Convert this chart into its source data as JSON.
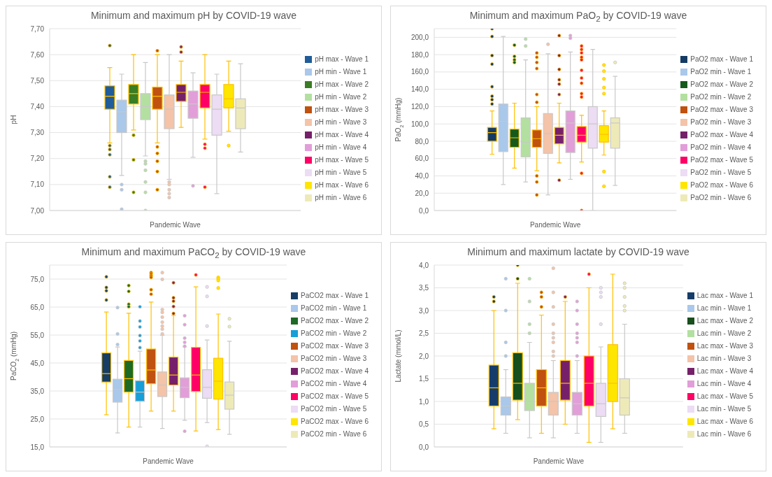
{
  "chart_data": [
    {
      "type": "box",
      "title": "Minimum and maximum pH by COVID-19 wave",
      "xlabel": "Pandemic Wave",
      "ylabel": "pH",
      "categories": [
        null
      ],
      "ylim": [
        7.0,
        7.7
      ],
      "yticks": [
        {
          "value": 7.0,
          "label": "7,00"
        },
        {
          "value": 7.1,
          "label": "7,10"
        },
        {
          "value": 7.2,
          "label": "7,20"
        },
        {
          "value": 7.3,
          "label": "7,30"
        },
        {
          "value": 7.4,
          "label": "7,40"
        },
        {
          "value": 7.5,
          "label": "7,50"
        },
        {
          "value": 7.6,
          "label": "7,60"
        },
        {
          "value": 7.7,
          "label": "7,70"
        }
      ],
      "grid": "y",
      "legend": "right",
      "tick_labels": "y",
      "series": [
        {
          "name": "pH max - Wave 1",
          "color": "#1f5c99",
          "boxes": [
            {
              "low": 7.26,
              "q1": 7.39,
              "median": 7.44,
              "q3": 7.48,
              "high": 7.55,
              "outliers": [
                7.635,
                7.25,
                7.235,
                7.215,
                7.13,
                7.09
              ]
            }
          ]
        },
        {
          "name": "pH min - Wave 1",
          "color": "#a9c8ea",
          "boxes": [
            {
              "low": 7.135,
              "q1": 7.3,
              "median": 7.38,
              "q3": 7.425,
              "high": 7.525,
              "outliers": [
                7.1,
                7.08,
                7.005
              ]
            }
          ]
        },
        {
          "name": "pH max - Wave 2",
          "color": "#3a7d22",
          "boxes": [
            {
              "low": 7.31,
              "q1": 7.41,
              "median": 7.45,
              "q3": 7.485,
              "high": 7.6,
              "outliers": [
                7.29,
                7.195,
                7.07
              ]
            }
          ]
        },
        {
          "name": "pH min - Wave 2",
          "color": "#b3e0a0",
          "boxes": [
            {
              "low": 7.21,
              "q1": 7.35,
              "median": 7.4,
              "q3": 7.45,
              "high": 7.57,
              "outliers": [
                7.19,
                7.18,
                7.155,
                7.11,
                7.07,
                7.0
              ]
            }
          ]
        },
        {
          "name": "pH max - Wave 3",
          "color": "#c0510f",
          "boxes": [
            {
              "low": 7.26,
              "q1": 7.39,
              "median": 7.44,
              "q3": 7.475,
              "high": 7.6,
              "outliers": [
                7.615,
                7.245,
                7.22,
                7.19,
                7.15,
                7.08
              ]
            }
          ]
        },
        {
          "name": "pH min - Wave 3",
          "color": "#f4c3a8",
          "boxes": [
            {
              "low": 7.12,
              "q1": 7.315,
              "median": 7.39,
              "q3": 7.445,
              "high": 7.6,
              "outliers": [
                7.11,
                7.1,
                7.08,
                7.065,
                7.05
              ]
            }
          ]
        },
        {
          "name": "pH max - Wave 4",
          "color": "#77206a",
          "boxes": [
            {
              "low": 7.32,
              "q1": 7.42,
              "median": 7.455,
              "q3": 7.485,
              "high": 7.575,
              "outliers": [
                7.63,
                7.61
              ]
            }
          ]
        },
        {
          "name": "pH min - Wave 4",
          "color": "#e29ed8",
          "boxes": [
            {
              "low": 7.205,
              "q1": 7.355,
              "median": 7.41,
              "q3": 7.46,
              "high": 7.53,
              "outliers": [
                7.095
              ]
            }
          ]
        },
        {
          "name": "pH max - Wave 5",
          "color": "#ff0066",
          "boxes": [
            {
              "low": 7.275,
              "q1": 7.395,
              "median": 7.455,
              "q3": 7.485,
              "high": 7.6,
              "outliers": [
                7.255,
                7.24,
                7.09
              ]
            }
          ]
        },
        {
          "name": "pH min - Wave 5",
          "color": "#ecdcf4",
          "boxes": [
            {
              "low": 7.065,
              "q1": 7.29,
              "median": 7.39,
              "q3": 7.445,
              "high": 7.525
            }
          ]
        },
        {
          "name": "pH max - Wave 6",
          "color": "#ffe600",
          "boxes": [
            {
              "low": 7.305,
              "q1": 7.395,
              "median": 7.43,
              "q3": 7.485,
              "high": 7.575,
              "outliers": [
                7.25
              ]
            }
          ]
        },
        {
          "name": "pH min - Wave 6",
          "color": "#eeeab8",
          "boxes": [
            {
              "low": 7.225,
              "q1": 7.315,
              "median": 7.395,
              "q3": 7.43,
              "high": 7.565
            }
          ]
        }
      ]
    },
    {
      "type": "box",
      "title": "Minimum and maximum PaO$_{2}$ by COVID-19 wave",
      "xlabel": "Pandemic Wave",
      "ylabel": "PaO$_{2}$ (mmHg)",
      "categories": [
        null
      ],
      "ylim": [
        0,
        210
      ],
      "yticks": [
        {
          "value": 0,
          "label": "0,0"
        },
        {
          "value": 20,
          "label": "20,0"
        },
        {
          "value": 40,
          "label": "40,0"
        },
        {
          "value": 60,
          "label": "60,0"
        },
        {
          "value": 80,
          "label": "80,0"
        },
        {
          "value": 100,
          "label": "100,0"
        },
        {
          "value": 120,
          "label": "120,0"
        },
        {
          "value": 140,
          "label": "140,0"
        },
        {
          "value": 160,
          "label": "160,0"
        },
        {
          "value": 180,
          "label": "180,0"
        },
        {
          "value": 200,
          "label": "200,0"
        }
      ],
      "grid": "y",
      "legend": "right",
      "tick_labels": "y",
      "series": [
        {
          "name": "PaO2 max - Wave 1",
          "color": "#153a63",
          "boxes": [
            {
              "low": 65,
              "q1": 80,
              "median": 90,
              "q3": 96,
              "high": 115,
              "outliers": [
                210,
                201,
                179,
                169,
                143,
                132,
                128,
                123
              ]
            }
          ]
        },
        {
          "name": "PaO2 min - Wave 1",
          "color": "#a9c8ea",
          "boxes": [
            {
              "low": 30,
              "q1": 68,
              "median": 103,
              "q3": 123,
              "high": 201
            }
          ]
        },
        {
          "name": "PaO2 max - Wave 2",
          "color": "#155a1c",
          "boxes": [
            {
              "low": 49,
              "q1": 73,
              "median": 84,
              "q3": 94,
              "high": 124,
              "outliers": [
                191,
                178,
                174,
                171
              ]
            }
          ]
        },
        {
          "name": "PaO2 min - Wave 2",
          "color": "#b3e0a0",
          "boxes": [
            {
              "low": 33,
              "q1": 62,
              "median": 79,
              "q3": 107,
              "high": 174,
              "outliers": [
                198,
                190
              ]
            }
          ]
        },
        {
          "name": "PaO2 max - Wave 3",
          "color": "#c0510f",
          "boxes": [
            {
              "low": 46,
              "q1": 73,
              "median": 83,
              "q3": 93,
              "high": 120,
              "outliers": [
                182,
                177,
                171,
                164,
                134,
                125,
                40,
                33,
                18
              ]
            }
          ]
        },
        {
          "name": "PaO2 min - Wave 3",
          "color": "#f4c3a8",
          "boxes": [
            {
              "low": 18,
              "q1": 66,
              "median": 89,
              "q3": 112,
              "high": 181,
              "outliers": [
                192
              ]
            }
          ]
        },
        {
          "name": "PaO2 max - Wave 4",
          "color": "#77206a",
          "boxes": [
            {
              "low": 55,
              "q1": 77,
              "median": 87,
              "q3": 96,
              "high": 124,
              "outliers": [
                202,
                179,
                163,
                151,
                146,
                134,
                35
              ]
            }
          ]
        },
        {
          "name": "PaO2 min - Wave 4",
          "color": "#e29ed8",
          "boxes": [
            {
              "low": 36,
              "q1": 67,
              "median": 101,
              "q3": 115,
              "high": 183,
              "outliers": [
                202,
                199
              ]
            }
          ]
        },
        {
          "name": "PaO2 max - Wave 5",
          "color": "#ff0066",
          "boxes": [
            {
              "low": 56,
              "q1": 79,
              "median": 87,
              "q3": 97,
              "high": 110,
              "outliers": [
                190,
                186,
                182,
                177,
                174,
                162,
                153,
                147,
                135,
                131,
                43,
                0
              ]
            }
          ]
        },
        {
          "name": "PaO2 min - Wave 5",
          "color": "#ecdcf4",
          "boxes": [
            {
              "low": 0,
              "q1": 72,
              "median": 100,
              "q3": 120,
              "high": 186
            }
          ]
        },
        {
          "name": "PaO2 max - Wave 6",
          "color": "#ffe600",
          "boxes": [
            {
              "low": 64,
              "q1": 79,
              "median": 88,
              "q3": 98,
              "high": 115,
              "outliers": [
                168,
                161,
                152,
                142,
                135,
                45,
                28
              ]
            }
          ]
        },
        {
          "name": "PaO2 min - Wave 6",
          "color": "#eeeab8",
          "boxes": [
            {
              "low": 29,
              "q1": 72,
              "median": 101,
              "q3": 107,
              "high": 155,
              "outliers": [
                171
              ]
            }
          ]
        }
      ]
    },
    {
      "type": "box",
      "title": "Minimum and maximum PaCO$_{2}$ by COVID-19 wave",
      "xlabel": "Pandemic Wave",
      "ylabel": "PaCO$_{2}$ (mmHg)",
      "categories": [
        null
      ],
      "ylim": [
        15,
        80
      ],
      "yticks": [
        {
          "value": 15,
          "label": "15,0"
        },
        {
          "value": 25,
          "label": "25,0"
        },
        {
          "value": 35,
          "label": "35,0"
        },
        {
          "value": 45,
          "label": "45,0"
        },
        {
          "value": 55,
          "label": "55,0"
        },
        {
          "value": 65,
          "label": "65,0"
        },
        {
          "value": 75,
          "label": "75,0"
        }
      ],
      "grid": "y",
      "legend": "right",
      "tick_labels": "y",
      "series": [
        {
          "name": "PaCO2 max - Wave 1",
          "color": "#173e65",
          "boxes": [
            {
              "low": 26.5,
              "q1": 38.2,
              "median": 41.2,
              "q3": 48.6,
              "high": 63.2,
              "outliers": [
                75.8,
                72,
                70.8,
                67.5
              ]
            }
          ]
        },
        {
          "name": "PaCO2 min - Wave 1",
          "color": "#a9c8ea",
          "boxes": [
            {
              "low": 20,
              "q1": 31,
              "median": 35.6,
              "q3": 39.2,
              "high": 50.7,
              "outliers": [
                64.8,
                55.4,
                51.6
              ]
            }
          ]
        },
        {
          "name": "PaCO2 max - Wave 2",
          "color": "#1d6a25",
          "boxes": [
            {
              "low": 22.1,
              "q1": 34.6,
              "median": 39.4,
              "q3": 45.9,
              "high": 62.8,
              "outliers": [
                72.7,
                70.6,
                66,
                65.1
              ]
            }
          ]
        },
        {
          "name": "PaCO2 min - Wave 2",
          "color": "#169fd8",
          "boxes": [
            {
              "low": 22.1,
              "q1": 31.3,
              "median": 34.6,
              "q3": 38.7,
              "high": 49.2,
              "outliers": [
                65.1,
                60,
                57.9,
                54.8,
                52.9,
                50.5
              ]
            }
          ]
        },
        {
          "name": "PaCO2 max - Wave 3",
          "color": "#c0510f",
          "boxes": [
            {
              "low": 27.8,
              "q1": 37.6,
              "median": 42.5,
              "q3": 50,
              "high": 66.8,
              "outliers": [
                77.3,
                76.8,
                76.2,
                75.6,
                71.2,
                69.6
              ]
            }
          ]
        },
        {
          "name": "PaCO2 min - Wave 3",
          "color": "#f4c3a8",
          "boxes": [
            {
              "low": 21.6,
              "q1": 33,
              "median": 37.1,
              "q3": 41.8,
              "high": 54.9,
              "outliers": [
                77.3,
                74.9,
                64.1,
                63.1,
                61.4,
                59.6,
                58.2,
                57.1,
                55.4
              ]
            }
          ]
        },
        {
          "name": "PaCO2 max - Wave 4",
          "color": "#77206a",
          "boxes": [
            {
              "low": 27.8,
              "q1": 37.1,
              "median": 40.7,
              "q3": 47.1,
              "high": 62,
              "outliers": [
                73.7,
                68.3,
                67.1,
                65.2,
                62.7
              ]
            }
          ]
        },
        {
          "name": "PaCO2 min - Wave 4",
          "color": "#e29ed8",
          "boxes": [
            {
              "low": 24.5,
              "q1": 32.6,
              "median": 36.3,
              "q3": 39.7,
              "high": 50.8,
              "outliers": [
                61.9,
                58.7,
                53.9,
                52.4,
                51,
                20.6
              ]
            }
          ]
        },
        {
          "name": "PaCO2 max - Wave 5",
          "color": "#ff0066",
          "boxes": [
            {
              "low": 20.7,
              "q1": 34.8,
              "median": 40.7,
              "q3": 50.6,
              "high": 72.2,
              "outliers": [
                76.5
              ]
            }
          ]
        },
        {
          "name": "PaCO2 min - Wave 5",
          "color": "#ecdcf4",
          "boxes": [
            {
              "low": 23.7,
              "q1": 32.4,
              "median": 36.3,
              "q3": 42.6,
              "high": 53.2,
              "outliers": [
                72.2,
                68.8,
                58.2,
                15.2
              ]
            }
          ]
        },
        {
          "name": "PaCO2 max - Wave 6",
          "color": "#ffe600",
          "boxes": [
            {
              "low": 21.2,
              "q1": 32.1,
              "median": 38.5,
              "q3": 46.7,
              "high": 62.5,
              "outliers": [
                75.6,
                75.1,
                74.5,
                71.8
              ]
            }
          ]
        },
        {
          "name": "PaCO2 min - Wave 6",
          "color": "#eeeab8",
          "boxes": [
            {
              "low": 19.5,
              "q1": 28.5,
              "median": 33.5,
              "q3": 38.2,
              "high": 52.8,
              "outliers": [
                60.8,
                58
              ]
            }
          ]
        }
      ]
    },
    {
      "type": "box",
      "title": "Minimum and maximum lactate by COVID-19 wave",
      "xlabel": "Pandemic Wave",
      "ylabel": "Lactate (mmol/L)",
      "categories": [
        null
      ],
      "ylim": [
        0,
        4
      ],
      "yticks": [
        {
          "value": 0,
          "label": "0,0"
        },
        {
          "value": 0.5,
          "label": "0,5"
        },
        {
          "value": 1,
          "label": "1,0"
        },
        {
          "value": 1.5,
          "label": "1,5"
        },
        {
          "value": 2,
          "label": "2,0"
        },
        {
          "value": 2.5,
          "label": "2,5"
        },
        {
          "value": 3,
          "label": "3,0"
        },
        {
          "value": 3.5,
          "label": "3,5"
        },
        {
          "value": 4,
          "label": "4,0"
        }
      ],
      "grid": "y",
      "legend": "right",
      "tick_labels": "y",
      "series": [
        {
          "name": "Lac max - Wave 1",
          "color": "#163d69",
          "boxes": [
            {
              "low": 0.4,
              "q1": 0.9,
              "median": 1.3,
              "q3": 1.8,
              "high": 3,
              "outliers": [
                3.3,
                3.2
              ]
            }
          ]
        },
        {
          "name": "Lac min - Wave 1",
          "color": "#a9c8ea",
          "boxes": [
            {
              "low": 0.3,
              "q1": 0.7,
              "median": 0.9,
              "q3": 1.1,
              "high": 1.7,
              "outliers": [
                3.7,
                3,
                2.3,
                2
              ]
            }
          ]
        },
        {
          "name": "Lac max - Wave 2",
          "color": "#174f1d",
          "boxes": [
            {
              "low": 0.6,
              "q1": 1.03,
              "median": 1.4,
              "q3": 2.07,
              "high": 3.6,
              "outliers": [
                4,
                3.7
              ]
            }
          ]
        },
        {
          "name": "Lac min - Wave 2",
          "color": "#b3e0a0",
          "boxes": [
            {
              "low": 0.2,
              "q1": 0.8,
              "median": 1,
              "q3": 1.4,
              "high": 2.3,
              "outliers": [
                3.7,
                3.2,
                2.7,
                2.5
              ]
            }
          ]
        },
        {
          "name": "Lac max - Wave 3",
          "color": "#c0510f",
          "boxes": [
            {
              "low": 0.3,
              "q1": 0.9,
              "median": 1.3,
              "q3": 1.7,
              "high": 2.9,
              "outliers": [
                3.4,
                3.3,
                3.08
              ]
            }
          ]
        },
        {
          "name": "Lac min - Wave 3",
          "color": "#f4c3a8",
          "boxes": [
            {
              "low": 0.2,
              "q1": 0.7,
              "median": 1,
              "q3": 1.2,
              "high": 1.9,
              "outliers": [
                3.93,
                3.4,
                3.08,
                2.7,
                2.5,
                2.4,
                2.3,
                2.1,
                2
              ]
            }
          ]
        },
        {
          "name": "Lac max - Wave 4",
          "color": "#77206a",
          "boxes": [
            {
              "low": 0.5,
              "q1": 1.03,
              "median": 1.4,
              "q3": 1.9,
              "high": 3.2,
              "outliers": [
                3.3
              ]
            }
          ]
        },
        {
          "name": "Lac min - Wave 4",
          "color": "#e29ed8",
          "boxes": [
            {
              "low": 0.3,
              "q1": 0.7,
              "median": 0.95,
              "q3": 1.2,
              "high": 1.9,
              "outliers": [
                3.2,
                3,
                2.7,
                2.5,
                2.4,
                2.3,
                2
              ]
            }
          ]
        },
        {
          "name": "Lac max - Wave 5",
          "color": "#ff0066",
          "boxes": [
            {
              "low": 0.1,
              "q1": 0.9,
              "median": 1.4,
              "q3": 2,
              "high": 3.5,
              "outliers": [
                3.8
              ]
            }
          ]
        },
        {
          "name": "Lac min - Wave 5",
          "color": "#ecdcf4",
          "boxes": [
            {
              "low": 0.1,
              "q1": 0.67,
              "median": 0.95,
              "q3": 1.4,
              "high": 2.2,
              "outliers": [
                3.5,
                3.4,
                3.3,
                2.7
              ]
            }
          ]
        },
        {
          "name": "Lac max - Wave 6",
          "color": "#ffe600",
          "boxes": [
            {
              "low": 0.4,
              "q1": 1,
              "median": 1.4,
              "q3": 2.25,
              "high": 3.8
            }
          ]
        },
        {
          "name": "Lac min - Wave 6",
          "color": "#eeeab8",
          "boxes": [
            {
              "low": 0.3,
              "q1": 0.7,
              "median": 1.08,
              "q3": 1.5,
              "high": 2.7,
              "outliers": [
                3.6,
                3.5,
                3.3,
                3.1,
                3
              ]
            }
          ]
        }
      ]
    }
  ]
}
